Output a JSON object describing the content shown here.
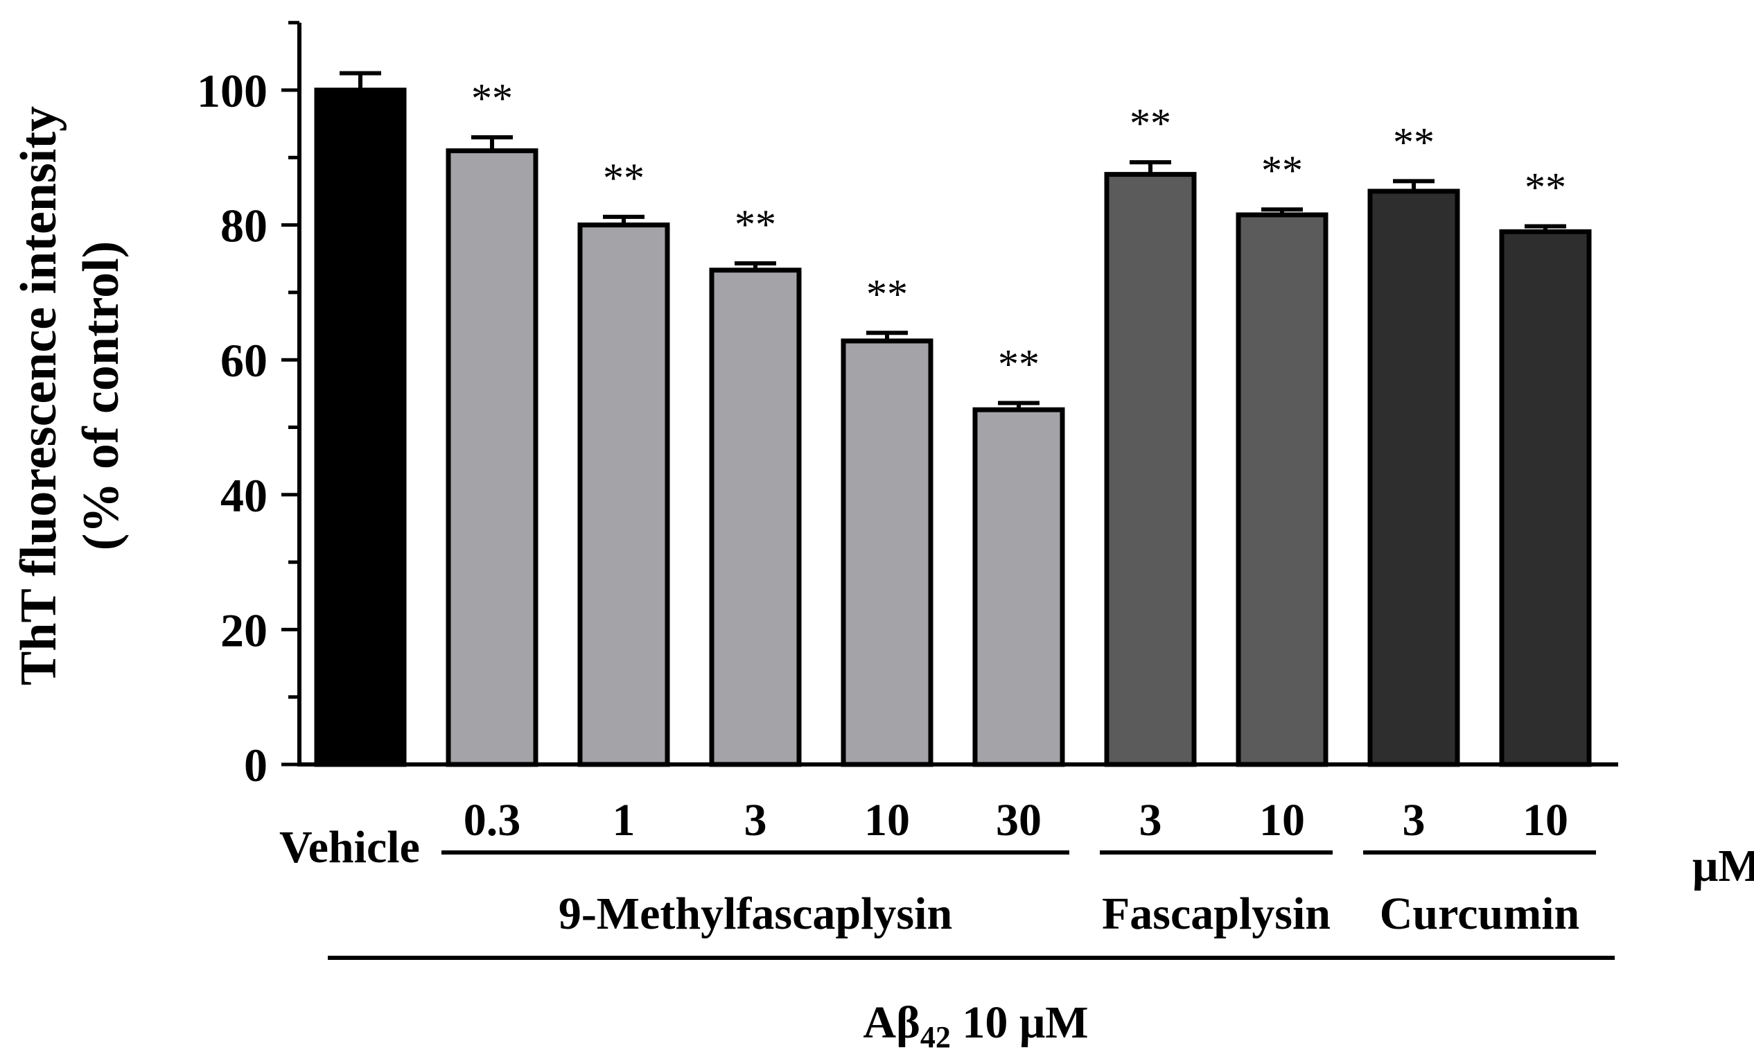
{
  "chart_data": {
    "type": "bar",
    "ylabel_line1": "ThT fluorescence intensity",
    "ylabel_line2": "(% of control)",
    "ylim": [
      0,
      110
    ],
    "yticks": [
      0,
      20,
      40,
      60,
      80,
      100
    ],
    "grid": false,
    "bars": [
      {
        "label": "Vehicle",
        "value": 100.0,
        "error": 2.5,
        "sig": "",
        "color": "#000000"
      },
      {
        "label": "0.3",
        "value": 91.0,
        "error": 2.0,
        "sig": "**",
        "color": "#a3a3a8"
      },
      {
        "label": "1",
        "value": 80.0,
        "error": 1.2,
        "sig": "**",
        "color": "#a3a3a8"
      },
      {
        "label": "3",
        "value": 73.3,
        "error": 1.0,
        "sig": "**",
        "color": "#a3a3a8"
      },
      {
        "label": "10",
        "value": 62.8,
        "error": 1.2,
        "sig": "**",
        "color": "#a3a3a8"
      },
      {
        "label": "30",
        "value": 52.6,
        "error": 1.0,
        "sig": "**",
        "color": "#a3a3a8"
      },
      {
        "label": "3",
        "value": 87.5,
        "error": 1.8,
        "sig": "**",
        "color": "#5b5b5b"
      },
      {
        "label": "10",
        "value": 81.5,
        "error": 0.8,
        "sig": "**",
        "color": "#5b5b5b"
      },
      {
        "label": "3",
        "value": 85.0,
        "error": 1.5,
        "sig": "**",
        "color": "#2e2e2e"
      },
      {
        "label": "10",
        "value": 79.0,
        "error": 0.8,
        "sig": "**",
        "color": "#2e2e2e"
      }
    ],
    "groups": [
      {
        "name": "9-Methylfascaplysin",
        "first": 1,
        "last": 5
      },
      {
        "name": "Fascaplysin",
        "first": 6,
        "last": 7
      },
      {
        "name": "Curcumin",
        "first": 8,
        "last": 9
      }
    ],
    "unit": "μM",
    "treatment_prefix": "Aβ",
    "treatment_sub": "42",
    "treatment_suffix": " 10 μM"
  }
}
